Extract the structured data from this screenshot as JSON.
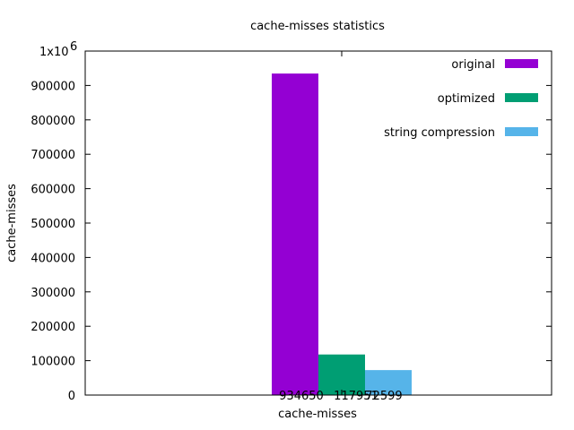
{
  "chart_data": {
    "type": "bar",
    "title": "cache-misses statistics",
    "xlabel": "cache-misses",
    "ylabel": "cache-misses",
    "categories": [
      "cache-misses"
    ],
    "series": [
      {
        "name": "original",
        "values": [
          934650
        ],
        "color": "#9400d3"
      },
      {
        "name": "optimized",
        "values": [
          117951
        ],
        "color": "#009e73"
      },
      {
        "name": "string compression",
        "values": [
          72599
        ],
        "color": "#56b4e9"
      }
    ],
    "data_labels": [
      "934650",
      "117951",
      "72599"
    ],
    "ylim": [
      0,
      1000000
    ],
    "yticks": [
      0,
      100000,
      200000,
      300000,
      400000,
      500000,
      600000,
      700000,
      800000,
      900000
    ],
    "ytick_labels": [
      "0",
      "100000",
      "200000",
      "300000",
      "400000",
      "500000",
      "600000",
      "700000",
      "800000",
      "900000"
    ],
    "ytop_label": "1x10",
    "ytop_exponent": "6",
    "grid": false,
    "legend_position": "top-right"
  }
}
